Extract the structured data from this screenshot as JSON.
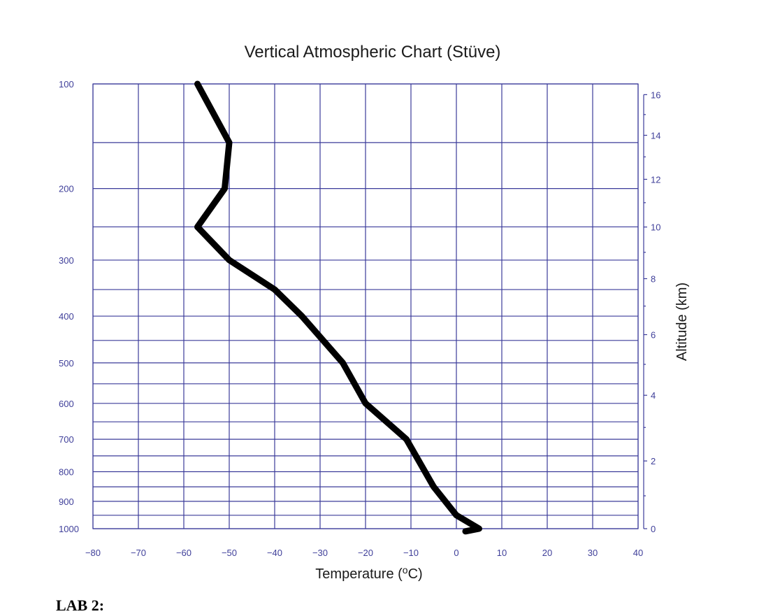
{
  "chart_data": {
    "type": "line",
    "title": "Vertical Atmospheric Chart (Stüve)",
    "xlabel": "Temperature (°C)",
    "xlabel_main": "Temperature (",
    "xlabel_sup": "o",
    "xlabel_end": "C)",
    "ylabel_right": "Altitude (km)",
    "xlim": [
      -80,
      40
    ],
    "x_ticks": [
      -80,
      -70,
      -60,
      -50,
      -40,
      -30,
      -20,
      -10,
      0,
      10,
      20,
      30,
      40
    ],
    "x_tick_labels": [
      "−80",
      "−70",
      "−60",
      "−50",
      "−40",
      "−30",
      "−20",
      "−10",
      "0",
      "10",
      "20",
      "30",
      "40"
    ],
    "y_left_ticks": [
      100,
      200,
      300,
      400,
      500,
      600,
      700,
      800,
      900,
      1000
    ],
    "y_left_tick_labels": [
      "100",
      "200",
      "300",
      "400",
      "500",
      "600",
      "700",
      "800",
      "900",
      "1000"
    ],
    "y_left_unlabeled_gridlines": [
      150,
      250,
      350,
      450,
      550,
      650,
      750,
      850,
      950
    ],
    "y_right_ticks": [
      0,
      2,
      4,
      6,
      8,
      10,
      12,
      14,
      16
    ],
    "y_right_tick_labels": [
      "0",
      "2",
      "4",
      "6",
      "8",
      "10",
      "12",
      "14",
      "16"
    ],
    "pressure_range_hPa": [
      100,
      1000
    ],
    "grid": true,
    "series": [
      {
        "points": [
          {
            "temp": 2,
            "pressure": 1010
          },
          {
            "temp": 5,
            "pressure": 1000
          },
          {
            "temp": 0,
            "pressure": 950
          },
          {
            "temp": -5,
            "pressure": 850
          },
          {
            "temp": -11,
            "pressure": 700
          },
          {
            "temp": -20,
            "pressure": 600
          },
          {
            "temp": -25,
            "pressure": 500
          },
          {
            "temp": -34,
            "pressure": 400
          },
          {
            "temp": -40,
            "pressure": 350
          },
          {
            "temp": -50,
            "pressure": 300
          },
          {
            "temp": -57,
            "pressure": 250
          },
          {
            "temp": -51,
            "pressure": 200
          },
          {
            "temp": -50,
            "pressure": 150
          },
          {
            "temp": -57,
            "pressure": 100
          }
        ],
        "color": "#000000"
      }
    ]
  },
  "footer_text": "LAB 2:"
}
